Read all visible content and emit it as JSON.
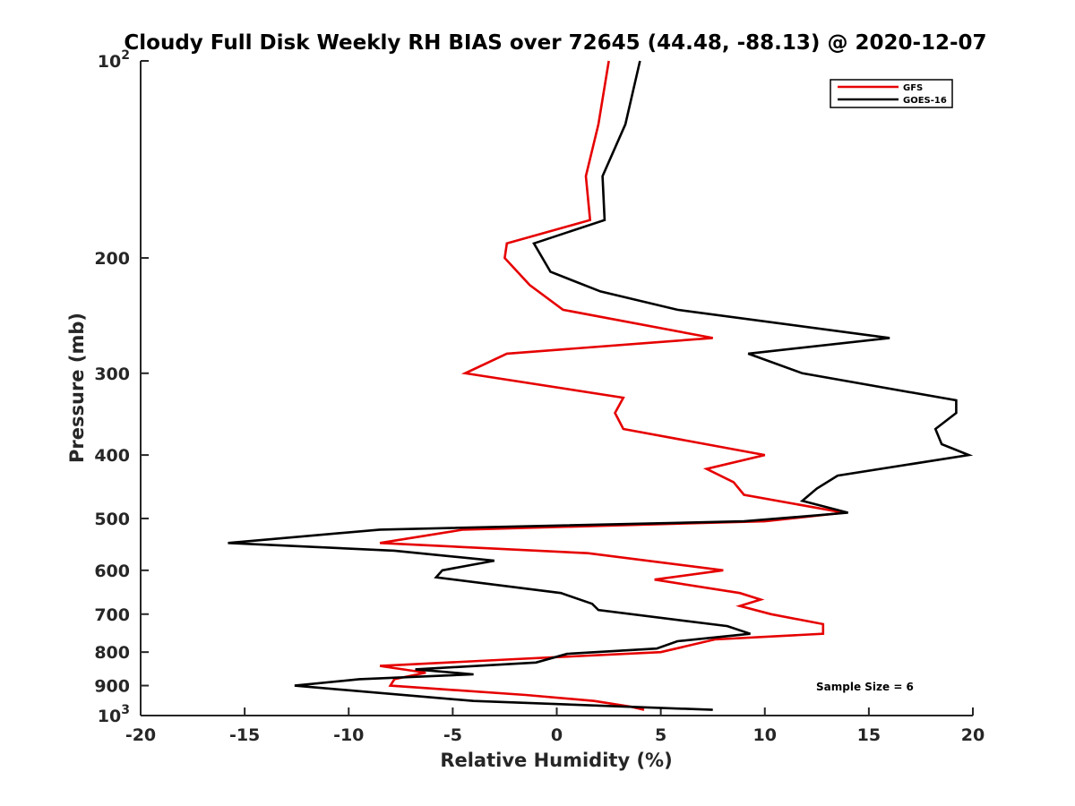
{
  "chart_data": {
    "type": "line",
    "title": "Cloudy Full Disk Weekly RH BIAS over 72645 (44.48, -88.13) @ 2020-12-07",
    "xlabel": "Relative Humidity (%)",
    "ylabel": "Pressure (mb)",
    "xlim": [
      -20,
      20
    ],
    "ylim": [
      100,
      1000
    ],
    "y_scale": "log",
    "y_reversed": true,
    "grid": false,
    "legend_position": "top-right",
    "x_ticks": [
      -20,
      -15,
      -10,
      -5,
      0,
      5,
      10,
      15,
      20
    ],
    "x_tick_labels": [
      "-20",
      "-15",
      "-10",
      "-5",
      "0",
      "5",
      "10",
      "15",
      "20"
    ],
    "y_ticks": [
      {
        "value": 100,
        "base": "10",
        "exp": "2",
        "label": ""
      },
      {
        "value": 200,
        "base": "",
        "exp": "",
        "label": "200"
      },
      {
        "value": 300,
        "base": "",
        "exp": "",
        "label": "300"
      },
      {
        "value": 400,
        "base": "",
        "exp": "",
        "label": "400"
      },
      {
        "value": 500,
        "base": "",
        "exp": "",
        "label": "500"
      },
      {
        "value": 600,
        "base": "",
        "exp": "",
        "label": "600"
      },
      {
        "value": 700,
        "base": "",
        "exp": "",
        "label": "700"
      },
      {
        "value": 800,
        "base": "",
        "exp": "",
        "label": "800"
      },
      {
        "value": 900,
        "base": "",
        "exp": "",
        "label": "900"
      },
      {
        "value": 1000,
        "base": "10",
        "exp": "3",
        "label": ""
      }
    ],
    "series": [
      {
        "name": "GFS",
        "color": "#e60000",
        "points": [
          [
            2.5,
            100
          ],
          [
            2.0,
            125
          ],
          [
            1.4,
            150
          ],
          [
            1.6,
            175
          ],
          [
            -2.4,
            190
          ],
          [
            -2.5,
            200
          ],
          [
            -1.3,
            220
          ],
          [
            0.3,
            240
          ],
          [
            7.5,
            265
          ],
          [
            -2.4,
            280
          ],
          [
            -4.4,
            300
          ],
          [
            3.2,
            327
          ],
          [
            2.8,
            345
          ],
          [
            3.2,
            365
          ],
          [
            10.0,
            400
          ],
          [
            7.2,
            420
          ],
          [
            8.5,
            440
          ],
          [
            9.0,
            460
          ],
          [
            13.8,
            490
          ],
          [
            10.0,
            505
          ],
          [
            -4.5,
            520
          ],
          [
            -8.5,
            545
          ],
          [
            1.5,
            565
          ],
          [
            8.0,
            600
          ],
          [
            4.7,
            620
          ],
          [
            8.8,
            650
          ],
          [
            9.8,
            665
          ],
          [
            8.8,
            680
          ],
          [
            10.3,
            700
          ],
          [
            12.8,
            725
          ],
          [
            12.8,
            750
          ],
          [
            7.6,
            765
          ],
          [
            5.0,
            800
          ],
          [
            -2.0,
            820
          ],
          [
            -8.5,
            840
          ],
          [
            -6.3,
            860
          ],
          [
            -7.8,
            880
          ],
          [
            -8.0,
            900
          ],
          [
            -1.5,
            930
          ],
          [
            1.8,
            950
          ],
          [
            3.6,
            970
          ],
          [
            4.2,
            980
          ]
        ]
      },
      {
        "name": "GOES-16",
        "color": "#000000",
        "points": [
          [
            4.0,
            100
          ],
          [
            3.3,
            125
          ],
          [
            2.2,
            150
          ],
          [
            2.3,
            175
          ],
          [
            -1.1,
            190
          ],
          [
            -0.3,
            210
          ],
          [
            2.1,
            225
          ],
          [
            5.8,
            240
          ],
          [
            16.0,
            265
          ],
          [
            9.2,
            280
          ],
          [
            11.8,
            300
          ],
          [
            19.2,
            330
          ],
          [
            19.2,
            345
          ],
          [
            18.2,
            365
          ],
          [
            18.5,
            385
          ],
          [
            19.8,
            400
          ],
          [
            13.5,
            430
          ],
          [
            12.5,
            450
          ],
          [
            11.8,
            470
          ],
          [
            14.0,
            490
          ],
          [
            9.0,
            505
          ],
          [
            -8.5,
            520
          ],
          [
            -15.8,
            545
          ],
          [
            -7.8,
            560
          ],
          [
            -3.0,
            580
          ],
          [
            -5.5,
            600
          ],
          [
            -5.8,
            615
          ],
          [
            0.2,
            650
          ],
          [
            1.7,
            675
          ],
          [
            2.0,
            690
          ],
          [
            8.2,
            730
          ],
          [
            9.3,
            750
          ],
          [
            5.8,
            770
          ],
          [
            4.8,
            790
          ],
          [
            0.5,
            805
          ],
          [
            -1.0,
            830
          ],
          [
            -6.8,
            850
          ],
          [
            -4.0,
            865
          ],
          [
            -9.5,
            880
          ],
          [
            -12.6,
            900
          ],
          [
            -4.0,
            950
          ],
          [
            7.5,
            980
          ]
        ]
      }
    ],
    "legend": [
      {
        "label": "GFS",
        "color": "#e60000"
      },
      {
        "label": "GOES-16",
        "color": "#000000"
      }
    ],
    "annotation": "Sample Size = 6"
  }
}
